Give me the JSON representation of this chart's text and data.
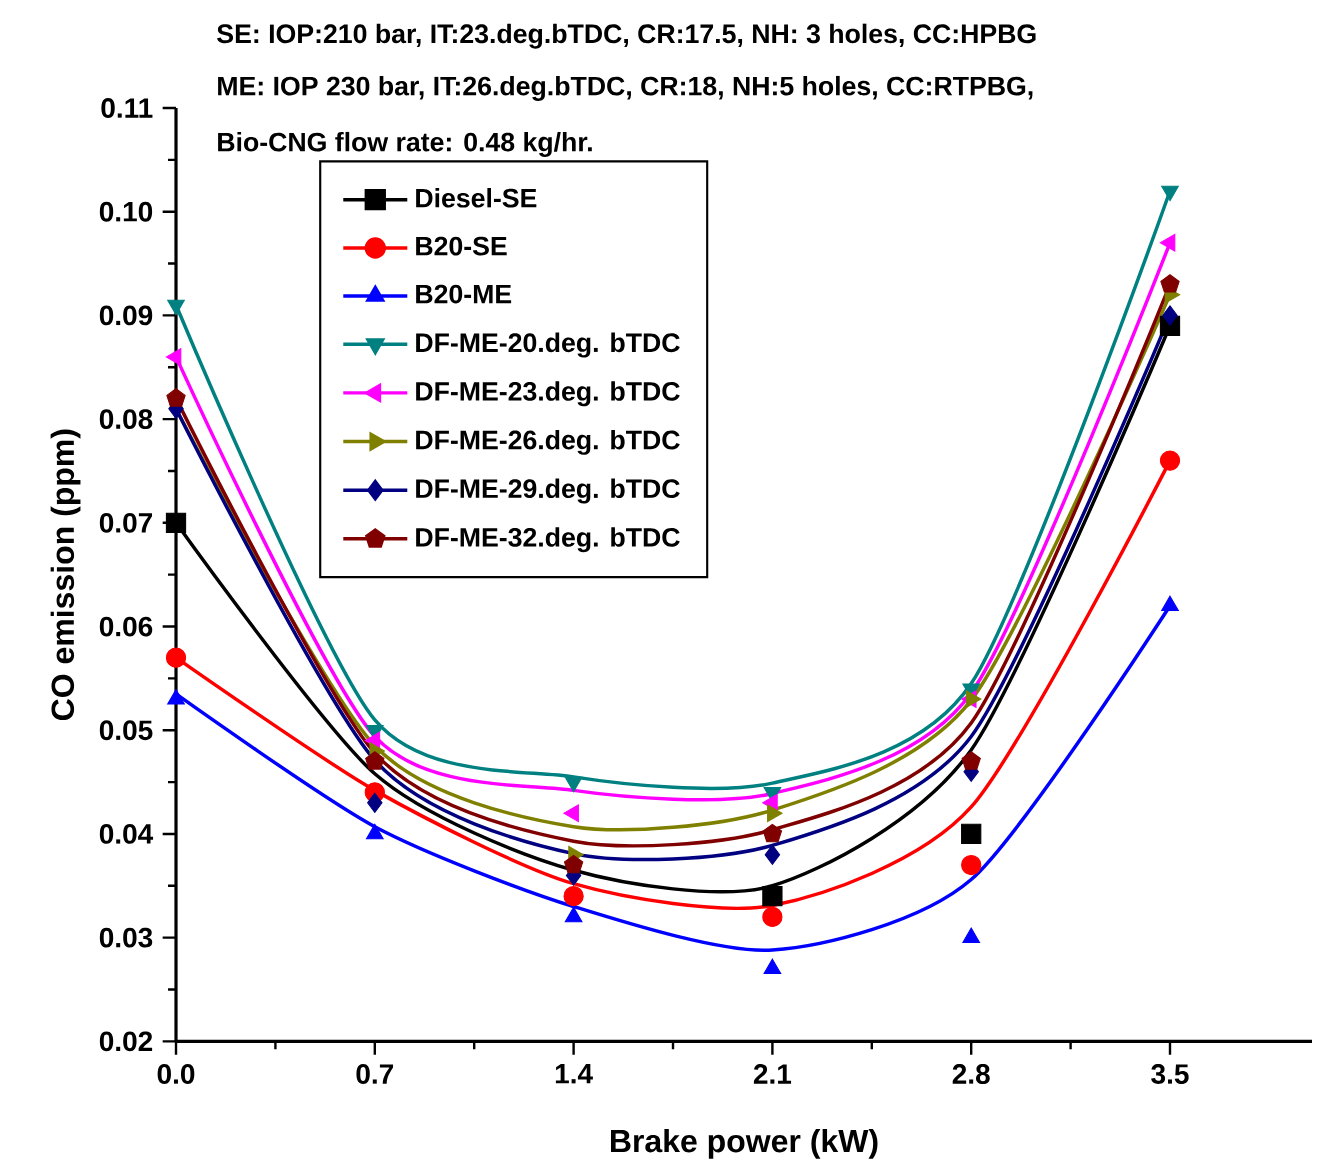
{
  "chart_data": {
    "type": "scatter",
    "annotations": [
      "SE: IOP:210 bar, IT:23.deg.bTDC, CR:17.5, NH: 3 holes, CC:HPBG",
      "ME: IOP 230 bar, IT:26.deg.bTDC, CR:18, NH:5 holes, CC:RTPBG,",
      "Bio-CNG flow rate: 0.48 kg/hr."
    ],
    "xlabel": "Brake power (kW)",
    "ylabel": "CO emission (ppm)",
    "x": [
      0,
      0.7,
      1.4,
      2.1,
      2.8,
      3.5
    ],
    "xlim": [
      0,
      4.0
    ],
    "xticks": [
      {
        "value": 0,
        "label": "0.0"
      },
      0.7,
      1.4,
      2.1,
      2.8,
      3.5
    ],
    "ylim": [
      0.02,
      0.11
    ],
    "yticks": [
      0.02,
      0.03,
      0.04,
      0.05,
      0.06,
      0.07,
      0.08,
      0.09,
      {
        "value": 0.1,
        "label": "0.10"
      },
      0.11
    ],
    "legend": "top left",
    "series": [
      {
        "type": "line",
        "color": "#000000",
        "values": [
          0.07,
          0.0458,
          0.0365,
          0.035,
          0.0481,
          0.089
        ]
      },
      {
        "type": "line",
        "color": "#ff0000",
        "values": [
          0.057,
          0.0442,
          0.0352,
          0.0331,
          0.0426,
          0.076
        ]
      },
      {
        "type": "line",
        "color": "#0000ff",
        "values": [
          0.0535,
          0.0407,
          0.033,
          0.0288,
          0.0356,
          0.062
        ]
      },
      {
        "type": "line",
        "color": "#008080",
        "values": [
          0.091,
          0.051,
          0.0455,
          0.0449,
          0.0545,
          0.102
        ]
      },
      {
        "type": "line",
        "color": "#ff00ff",
        "values": [
          0.086,
          0.0494,
          0.0442,
          0.0439,
          0.0536,
          0.097
        ]
      },
      {
        "type": "line",
        "color": "#808000",
        "values": [
          0.081,
          0.0485,
          0.0407,
          0.0423,
          0.0529,
          0.092
        ]
      },
      {
        "type": "line",
        "color": "#000080",
        "values": [
          0.081,
          0.0471,
          0.0381,
          0.0389,
          0.0494,
          0.09
        ]
      },
      {
        "type": "line",
        "color": "#800000",
        "values": [
          0.082,
          0.0478,
          0.0393,
          0.0404,
          0.0507,
          0.093
        ]
      },
      {
        "name": "Diesel-SE",
        "color": "#000000",
        "marker": "square",
        "values": [
          0.07,
          null,
          null,
          0.034,
          0.04,
          0.089
        ]
      },
      {
        "name": "B20-SE",
        "color": "#ff0000",
        "marker": "circle",
        "values": [
          0.057,
          0.044,
          0.034,
          0.032,
          0.037,
          0.076
        ]
      },
      {
        "name": "B20-ME",
        "color": "#0000ff",
        "marker": "triangle",
        "values": [
          0.053,
          0.04,
          0.032,
          0.027,
          0.03,
          0.062
        ]
      },
      {
        "name": "DF-ME-20.deg. bTDC",
        "color": "#008080",
        "marker": "triangle-down",
        "values": [
          0.091,
          0.05,
          0.045,
          0.044,
          0.054,
          0.102
        ]
      },
      {
        "name": "DF-ME-23.deg. bTDC",
        "color": "#ff00ff",
        "marker": "triangle-left",
        "values": [
          0.086,
          0.049,
          0.042,
          0.043,
          0.053,
          0.097
        ]
      },
      {
        "name": "DF-ME-26.deg. bTDC",
        "color": "#808000",
        "marker": "triangle-right",
        "values": [
          null,
          0.048,
          0.038,
          0.042,
          0.053,
          0.092
        ]
      },
      {
        "name": "DF-ME-29.deg. bTDC",
        "color": "#000080",
        "marker": "diamond",
        "values": [
          0.081,
          0.043,
          0.036,
          0.038,
          0.046,
          0.09
        ]
      },
      {
        "name": "DF-ME-32.deg. bTDC",
        "color": "#800000",
        "values": [
          0.082,
          0.047,
          0.037,
          0.04,
          0.047,
          0.093
        ]
      }
    ]
  }
}
